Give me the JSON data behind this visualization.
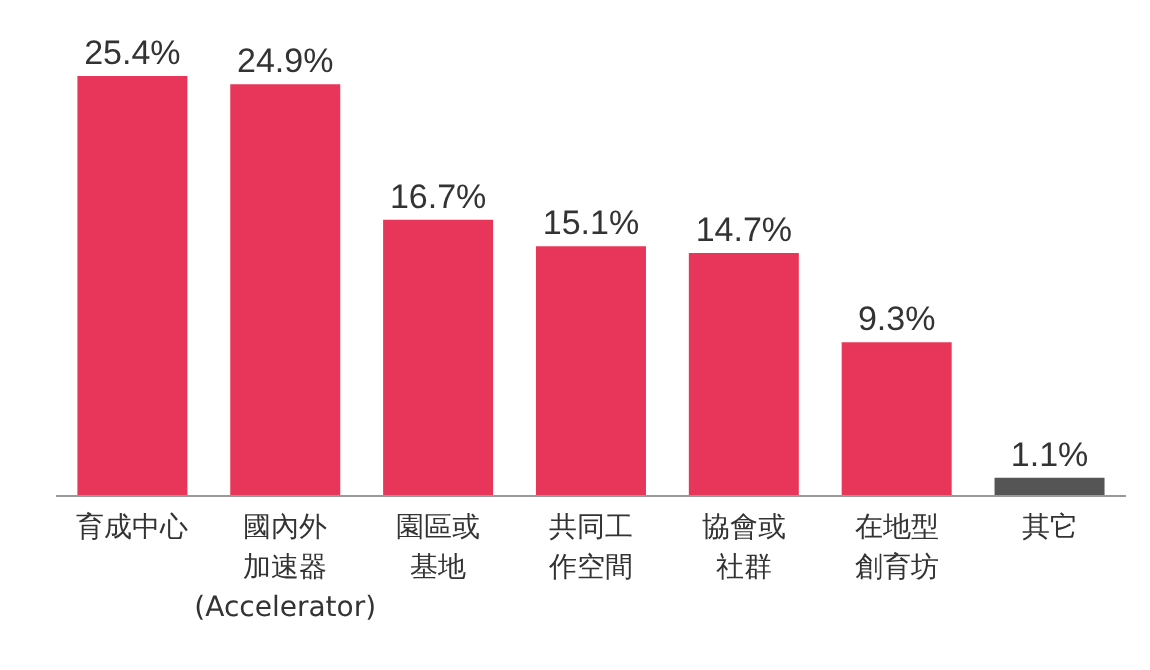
{
  "chart_data": {
    "type": "bar",
    "categories": [
      "育成中心",
      "國內外加速器(Accelerator)",
      "園區或基地",
      "共同工作空間",
      "協會或社群",
      "在地型創育坊",
      "其它"
    ],
    "values": [
      25.4,
      24.9,
      16.7,
      15.1,
      14.7,
      9.3,
      1.1
    ],
    "colors": [
      "#e8365a",
      "#e8365a",
      "#e8365a",
      "#e8365a",
      "#e8365a",
      "#e8365a",
      "#555555"
    ],
    "value_labels": [
      "25.4%",
      "24.9%",
      "16.7%",
      "15.1%",
      "14.7%",
      "9.3%",
      "1.1%"
    ],
    "grid": false,
    "legend": false
  }
}
